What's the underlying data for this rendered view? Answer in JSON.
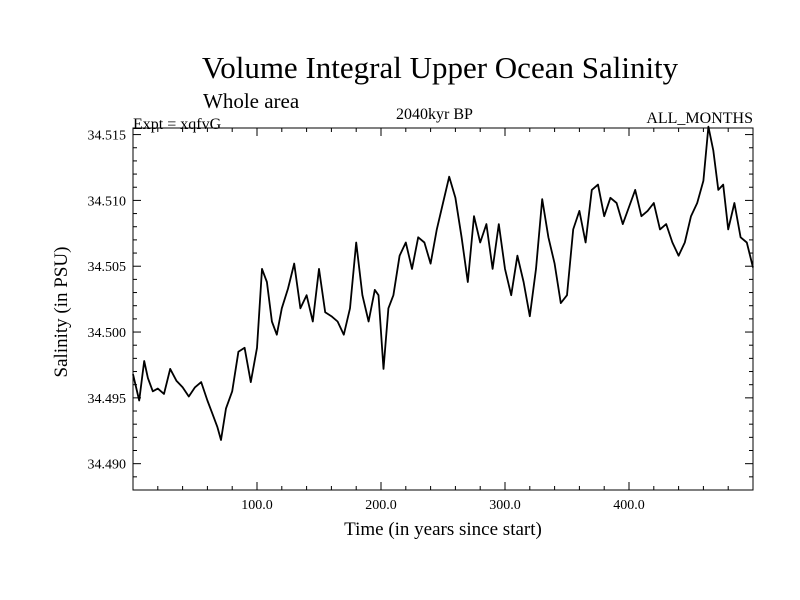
{
  "chart_data": {
    "type": "line",
    "title": "Volume Integral Upper Ocean Salinity",
    "subtitle": "Whole area",
    "annotations": {
      "experiment": "Expt = xqfvG",
      "period": "2040kyr BP",
      "months": "ALL_MONTHS"
    },
    "xlabel": "Time (in years since start)",
    "ylabel": "Salinity (in PSU)",
    "xlim": [
      0,
      500
    ],
    "ylim": [
      34.488,
      34.5155
    ],
    "xticks": [
      100,
      200,
      300,
      400
    ],
    "xtick_labels": [
      "100.0",
      "200.0",
      "300.0",
      "400.0"
    ],
    "yticks": [
      34.49,
      34.495,
      34.5,
      34.505,
      34.51,
      34.515
    ],
    "ytick_labels": [
      "34.490",
      "34.495",
      "34.500",
      "34.505",
      "34.510",
      "34.515"
    ],
    "grid": false,
    "series": [
      {
        "name": "Volume integral upper ocean salinity",
        "color": "#000000",
        "x": [
          0,
          5,
          9,
          12,
          16,
          20,
          25,
          30,
          35,
          40,
          45,
          50,
          55,
          60,
          64,
          68,
          71,
          75,
          80,
          85,
          90,
          95,
          100,
          104,
          108,
          112,
          116,
          120,
          125,
          130,
          135,
          140,
          145,
          150,
          155,
          160,
          165,
          170,
          175,
          180,
          185,
          190,
          195,
          198,
          202,
          206,
          210,
          215,
          220,
          225,
          230,
          235,
          240,
          245,
          250,
          255,
          260,
          265,
          270,
          275,
          280,
          285,
          290,
          295,
          300,
          305,
          310,
          315,
          320,
          325,
          330,
          335,
          340,
          345,
          350,
          355,
          360,
          365,
          370,
          375,
          380,
          385,
          390,
          395,
          400,
          405,
          410,
          415,
          420,
          425,
          430,
          435,
          440,
          445,
          450,
          455,
          460,
          464,
          468,
          472,
          476,
          480,
          485,
          490,
          495,
          500
        ],
        "values": [
          34.4968,
          34.4948,
          34.4978,
          34.4965,
          34.4955,
          34.4957,
          34.4953,
          34.4972,
          34.4963,
          34.4958,
          34.4951,
          34.4958,
          34.4962,
          34.4948,
          34.4938,
          34.4928,
          34.4918,
          34.4942,
          34.4955,
          34.4985,
          34.4988,
          34.4962,
          34.4988,
          34.5048,
          34.5038,
          34.5008,
          34.4998,
          34.5018,
          34.5033,
          34.5052,
          34.5018,
          34.5028,
          34.5008,
          34.5048,
          34.5015,
          34.5012,
          34.5008,
          34.4998,
          34.5018,
          34.5068,
          34.5028,
          34.5008,
          34.5032,
          34.5028,
          34.4972,
          34.5018,
          34.5028,
          34.5058,
          34.5068,
          34.5048,
          34.5072,
          34.5068,
          34.5052,
          34.5078,
          34.5098,
          34.5118,
          34.5102,
          34.5072,
          34.5038,
          34.5088,
          34.5068,
          34.5082,
          34.5048,
          34.5082,
          34.5048,
          34.5028,
          34.5058,
          34.5038,
          34.5012,
          34.5048,
          34.5101,
          34.5072,
          34.5052,
          34.5022,
          34.5028,
          34.5078,
          34.5092,
          34.5068,
          34.5108,
          34.5112,
          34.5088,
          34.5102,
          34.5098,
          34.5082,
          34.5095,
          34.5108,
          34.5088,
          34.5092,
          34.5098,
          34.5078,
          34.5082,
          34.5068,
          34.5058,
          34.5068,
          34.5088,
          34.5098,
          34.5115,
          34.5156,
          34.5138,
          34.5108,
          34.5112,
          34.5078,
          34.5098,
          34.5072,
          34.5068,
          34.5049
        ]
      }
    ]
  }
}
